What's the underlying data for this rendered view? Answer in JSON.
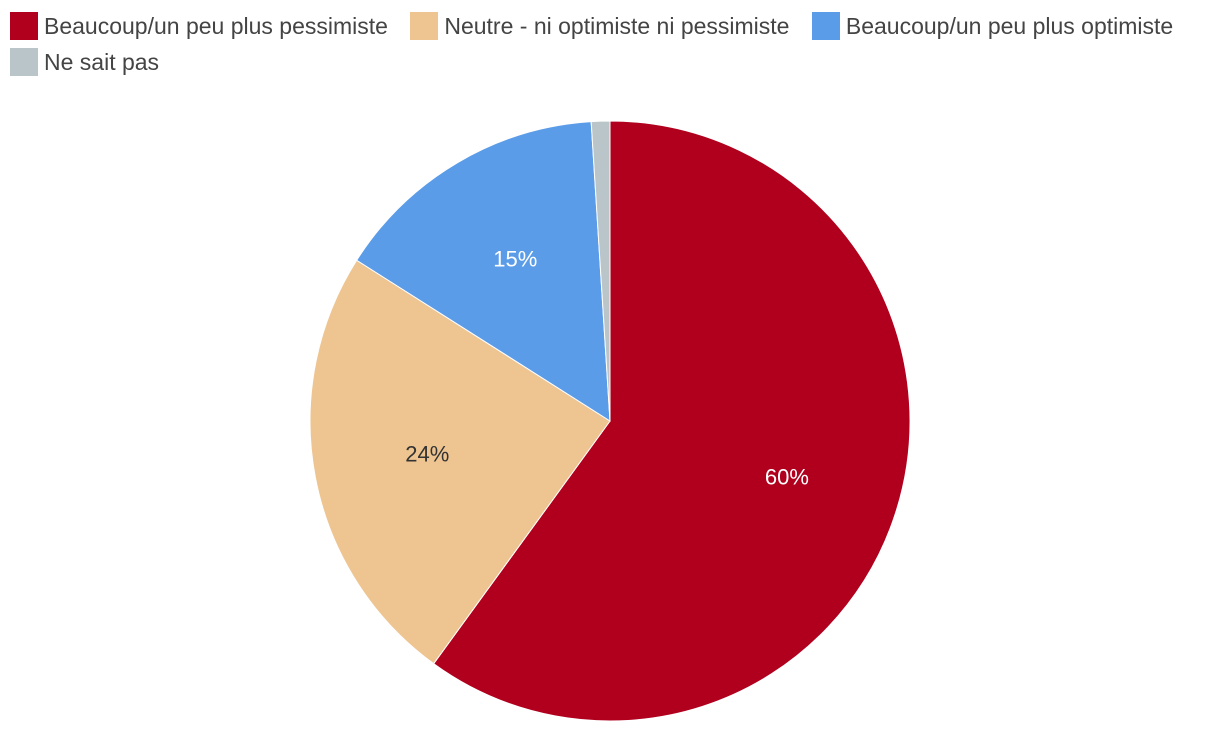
{
  "chart_data": {
    "type": "pie",
    "title": "",
    "legend_position": "top-left",
    "slices": [
      {
        "name": "Beaucoup/un peu plus pessimiste",
        "value": 60,
        "label": "60%",
        "color": "#b0001e",
        "label_color": "#ffffff"
      },
      {
        "name": "Neutre - ni optimiste ni pessimiste",
        "value": 24,
        "label": "24%",
        "color": "#eec591",
        "label_color": "#333333"
      },
      {
        "name": "Beaucoup/un peu plus optimiste",
        "value": 15,
        "label": "15%",
        "color": "#5b9ce8",
        "label_color": "#ffffff"
      },
      {
        "name": "Ne sait pas",
        "value": 1,
        "label": "",
        "color": "#b9c5c9",
        "label_color": "#333333"
      }
    ]
  }
}
